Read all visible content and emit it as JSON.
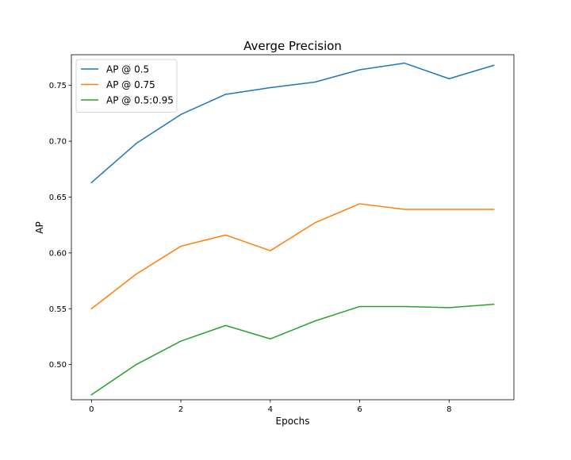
{
  "chart_data": {
    "type": "line",
    "title": "Averge Precision",
    "xlabel": "Epochs",
    "ylabel": "AP",
    "x": [
      0,
      1,
      2,
      3,
      4,
      5,
      6,
      7,
      8,
      9
    ],
    "xlim": [
      -0.45,
      9.45
    ],
    "ylim": [
      0.4685,
      0.7775
    ],
    "xticks": [
      0,
      2,
      4,
      6,
      8
    ],
    "xtick_labels": [
      "0",
      "2",
      "4",
      "6",
      "8"
    ],
    "yticks": [
      0.5,
      0.55,
      0.6,
      0.65,
      0.7,
      0.75
    ],
    "ytick_labels": [
      "0.50",
      "0.55",
      "0.60",
      "0.65",
      "0.70",
      "0.75"
    ],
    "grid": false,
    "legend_position": "upper-left",
    "series": [
      {
        "name": "AP @ 0.5",
        "color": "#1f77b4",
        "values": [
          0.663,
          0.698,
          0.724,
          0.742,
          0.748,
          0.753,
          0.764,
          0.77,
          0.756,
          0.768
        ]
      },
      {
        "name": "AP @ 0.75",
        "color": "#ff7f0e",
        "values": [
          0.55,
          0.581,
          0.606,
          0.616,
          0.602,
          0.627,
          0.644,
          0.639,
          0.639,
          0.639
        ]
      },
      {
        "name": "AP @ 0.5:0.95",
        "color": "#2ca02c",
        "values": [
          0.473,
          0.5,
          0.521,
          0.535,
          0.523,
          0.539,
          0.552,
          0.552,
          0.551,
          0.554
        ]
      }
    ]
  }
}
